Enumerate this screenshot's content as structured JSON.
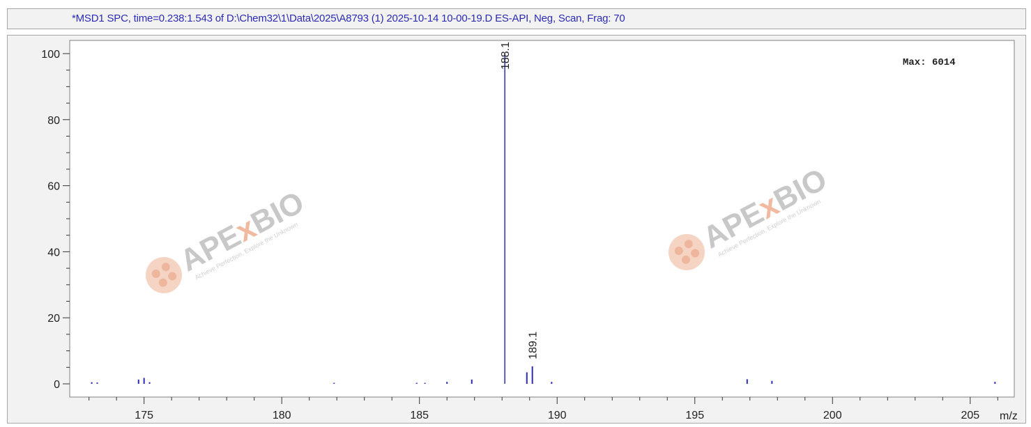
{
  "title_bar": {
    "text": "*MSD1 SPC, time=0.238:1.543 of D:\\Chem32\\1\\Data\\2025\\A8793 (1) 2025-10-14 10-00-19.D   ES-API, Neg, Scan, Frag: 70"
  },
  "watermark": {
    "brand_pre": "APE",
    "brand_x": "x",
    "brand_post": "BIO",
    "tagline": "Achieve Perfection, Explore the Unknown"
  },
  "chart_data": {
    "type": "bar",
    "xlabel": "m/z",
    "ylabel": "",
    "xlim": [
      172.3,
      206.6
    ],
    "ylim": [
      -4,
      104
    ],
    "x_ticks": [
      175,
      180,
      185,
      190,
      195,
      200,
      205
    ],
    "y_ticks": [
      0,
      20,
      40,
      60,
      80,
      100
    ],
    "max_text": "Max: 6014",
    "series_color": "#2b2bb5",
    "peaks": [
      {
        "mz": 173.1,
        "intensity": 0.5
      },
      {
        "mz": 173.3,
        "intensity": 0.4
      },
      {
        "mz": 174.8,
        "intensity": 1.3
      },
      {
        "mz": 175.0,
        "intensity": 1.8
      },
      {
        "mz": 175.2,
        "intensity": 0.5
      },
      {
        "mz": 181.9,
        "intensity": 0.3
      },
      {
        "mz": 184.9,
        "intensity": 0.3
      },
      {
        "mz": 185.2,
        "intensity": 0.3
      },
      {
        "mz": 186.0,
        "intensity": 0.6
      },
      {
        "mz": 186.9,
        "intensity": 1.3
      },
      {
        "mz": 188.1,
        "intensity": 100
      },
      {
        "mz": 188.9,
        "intensity": 3.5
      },
      {
        "mz": 189.1,
        "intensity": 5.3
      },
      {
        "mz": 189.8,
        "intensity": 0.6
      },
      {
        "mz": 196.9,
        "intensity": 1.4
      },
      {
        "mz": 197.8,
        "intensity": 0.9
      },
      {
        "mz": 205.9,
        "intensity": 0.6
      }
    ],
    "peak_labels": [
      {
        "mz": 188.1,
        "text": "188.1"
      },
      {
        "mz": 189.1,
        "text": "189.1"
      }
    ]
  }
}
